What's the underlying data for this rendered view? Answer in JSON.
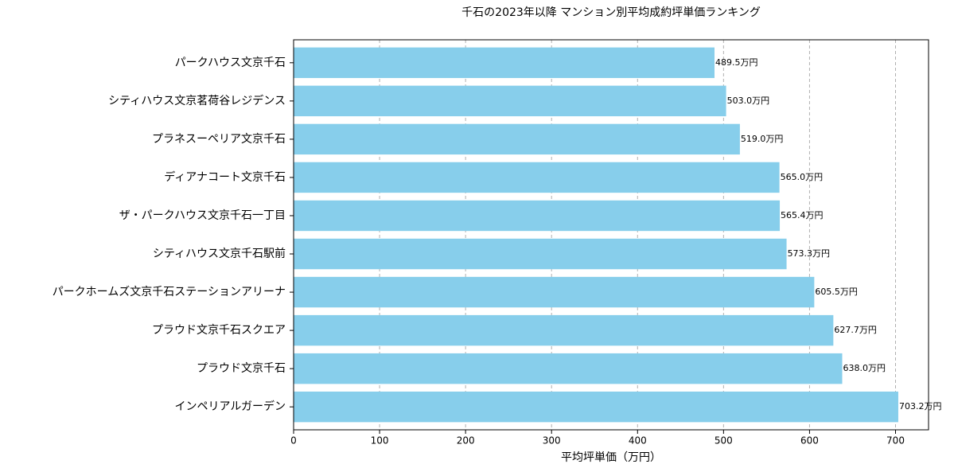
{
  "chart_data": {
    "type": "bar",
    "orientation": "horizontal",
    "title": "千石の2023年以降 マンション別平均成約坪単価ランキング",
    "x_label": "平均坪単価（万円）",
    "categories": [
      "パークハウス文京千石",
      "シティハウス文京茗荷谷レジデンス",
      "プラネスーペリア文京千石",
      "ディアナコート文京千石",
      "ザ・パークハウス文京千石一丁目",
      "シティハウス文京千石駅前",
      "パークホームズ文京千石ステーションアリーナ",
      "プラウド文京千石スクエア",
      "プラウド文京千石",
      "インペリアルガーデン"
    ],
    "values": [
      489.5,
      503.0,
      519.0,
      565.0,
      565.4,
      573.3,
      605.5,
      627.7,
      638.0,
      703.2
    ],
    "value_labels": [
      "489.5万円",
      "503.0万円",
      "519.0万円",
      "565.0万円",
      "565.4万円",
      "573.3万円",
      "605.5万円",
      "627.7万円",
      "638.0万円",
      "703.2万円"
    ],
    "color": "#87ceeb",
    "xlim": [
      0,
      738.4
    ],
    "xticks": [
      0,
      100,
      200,
      300,
      400,
      500,
      600,
      700
    ],
    "grid": true
  }
}
